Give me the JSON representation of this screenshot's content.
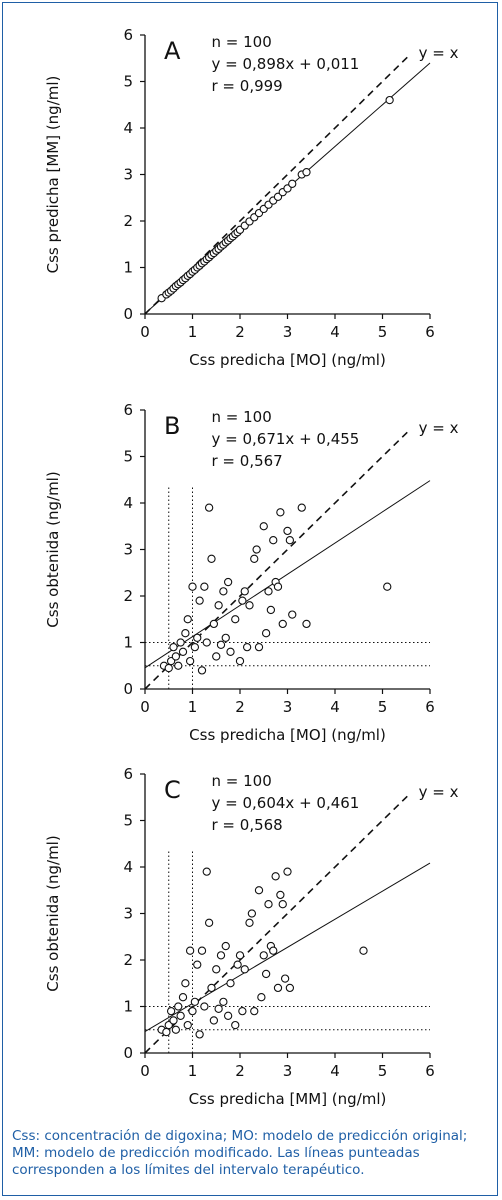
{
  "chart_data": [
    {
      "type": "scatter",
      "panel": "A",
      "xlabel": "Css predicha [MO] (ng/ml)",
      "ylabel": "Css predicha [MM] (ng/ml)",
      "xlim": [
        0,
        6
      ],
      "ylim": [
        0,
        6
      ],
      "xticks": [
        "0",
        "1",
        "2",
        "3",
        "4",
        "5",
        "6"
      ],
      "yticks": [
        "0",
        "1",
        "2",
        "3",
        "4",
        "5",
        "6"
      ],
      "stats": [
        "n = 100",
        "y = 0,898x + 0,011",
        "r = 0,999"
      ],
      "identity_label": "y = x",
      "regression": {
        "slope": 0.898,
        "intercept": 0.011
      },
      "ref_lines_x": [],
      "ref_lines_y": [],
      "points": [
        [
          0.35,
          0.34
        ],
        [
          0.45,
          0.42
        ],
        [
          0.5,
          0.46
        ],
        [
          0.55,
          0.5
        ],
        [
          0.6,
          0.55
        ],
        [
          0.65,
          0.6
        ],
        [
          0.7,
          0.64
        ],
        [
          0.75,
          0.68
        ],
        [
          0.8,
          0.73
        ],
        [
          0.85,
          0.77
        ],
        [
          0.9,
          0.82
        ],
        [
          0.95,
          0.86
        ],
        [
          1.0,
          0.91
        ],
        [
          1.05,
          0.95
        ],
        [
          1.1,
          1.0
        ],
        [
          1.15,
          1.04
        ],
        [
          1.2,
          1.09
        ],
        [
          1.25,
          1.13
        ],
        [
          1.3,
          1.18
        ],
        [
          1.35,
          1.22
        ],
        [
          1.4,
          1.27
        ],
        [
          1.45,
          1.31
        ],
        [
          1.5,
          1.36
        ],
        [
          1.55,
          1.4
        ],
        [
          1.6,
          1.45
        ],
        [
          1.65,
          1.49
        ],
        [
          1.7,
          1.54
        ],
        [
          1.75,
          1.58
        ],
        [
          1.8,
          1.63
        ],
        [
          1.85,
          1.67
        ],
        [
          1.9,
          1.72
        ],
        [
          1.95,
          1.76
        ],
        [
          2.0,
          1.81
        ],
        [
          2.1,
          1.9
        ],
        [
          2.2,
          1.99
        ],
        [
          2.3,
          2.08
        ],
        [
          2.4,
          2.17
        ],
        [
          2.5,
          2.26
        ],
        [
          2.6,
          2.35
        ],
        [
          2.7,
          2.44
        ],
        [
          2.8,
          2.52
        ],
        [
          2.9,
          2.62
        ],
        [
          3.0,
          2.7
        ],
        [
          3.1,
          2.8
        ],
        [
          3.3,
          3.0
        ],
        [
          3.4,
          3.05
        ],
        [
          5.15,
          4.6
        ]
      ]
    },
    {
      "type": "scatter",
      "panel": "B",
      "xlabel": "Css predicha [MO] (ng/ml)",
      "ylabel": "Css obtenida (ng/ml)",
      "xlim": [
        0,
        6
      ],
      "ylim": [
        0,
        6
      ],
      "xticks": [
        "0",
        "1",
        "2",
        "3",
        "4",
        "5",
        "6"
      ],
      "yticks": [
        "0",
        "1",
        "2",
        "3",
        "4",
        "5",
        "6"
      ],
      "stats": [
        "n = 100",
        "y = 0,671x + 0,455",
        "r = 0,567"
      ],
      "identity_label": "y = x",
      "regression": {
        "slope": 0.671,
        "intercept": 0.455
      },
      "ref_lines_x": [
        0.5,
        1.0
      ],
      "ref_lines_y": [
        0.5,
        1.0
      ],
      "points": [
        [
          0.4,
          0.5
        ],
        [
          0.5,
          0.45
        ],
        [
          0.55,
          0.6
        ],
        [
          0.6,
          0.9
        ],
        [
          0.65,
          0.7
        ],
        [
          0.7,
          0.5
        ],
        [
          0.75,
          1.0
        ],
        [
          0.8,
          0.8
        ],
        [
          0.85,
          1.2
        ],
        [
          0.9,
          1.5
        ],
        [
          0.95,
          0.6
        ],
        [
          1.0,
          2.2
        ],
        [
          1.05,
          0.9
        ],
        [
          1.1,
          1.1
        ],
        [
          1.15,
          1.9
        ],
        [
          1.2,
          0.4
        ],
        [
          1.25,
          2.2
        ],
        [
          1.3,
          1.0
        ],
        [
          1.35,
          3.9
        ],
        [
          1.4,
          2.8
        ],
        [
          1.45,
          1.4
        ],
        [
          1.5,
          0.7
        ],
        [
          1.55,
          1.8
        ],
        [
          1.6,
          0.95
        ],
        [
          1.65,
          2.1
        ],
        [
          1.7,
          1.1
        ],
        [
          1.75,
          2.3
        ],
        [
          1.8,
          0.8
        ],
        [
          1.9,
          1.5
        ],
        [
          2.0,
          0.6
        ],
        [
          2.05,
          1.9
        ],
        [
          2.1,
          2.1
        ],
        [
          2.15,
          0.9
        ],
        [
          2.2,
          1.8
        ],
        [
          2.3,
          2.8
        ],
        [
          2.35,
          3.0
        ],
        [
          2.4,
          0.9
        ],
        [
          2.5,
          3.5
        ],
        [
          2.55,
          1.2
        ],
        [
          2.6,
          2.1
        ],
        [
          2.65,
          1.7
        ],
        [
          2.7,
          3.2
        ],
        [
          2.75,
          2.3
        ],
        [
          2.8,
          2.2
        ],
        [
          2.85,
          3.8
        ],
        [
          2.9,
          1.4
        ],
        [
          3.0,
          3.4
        ],
        [
          3.05,
          3.2
        ],
        [
          3.1,
          1.6
        ],
        [
          3.3,
          3.9
        ],
        [
          3.4,
          1.4
        ],
        [
          5.1,
          2.2
        ]
      ]
    },
    {
      "type": "scatter",
      "panel": "C",
      "xlabel": "Css predicha [MM] (ng/ml)",
      "ylabel": "Css obtenida (ng/ml)",
      "xlim": [
        0,
        6
      ],
      "ylim": [
        0,
        6
      ],
      "xticks": [
        "0",
        "1",
        "2",
        "3",
        "4",
        "5",
        "6"
      ],
      "yticks": [
        "0",
        "1",
        "2",
        "3",
        "4",
        "5",
        "6"
      ],
      "stats": [
        "n = 100",
        "y = 0,604x + 0,461",
        "r = 0,568"
      ],
      "identity_label": "y = x",
      "regression": {
        "slope": 0.604,
        "intercept": 0.461
      },
      "ref_lines_x": [
        0.5,
        1.0
      ],
      "ref_lines_y": [
        0.5,
        1.0
      ],
      "points": [
        [
          0.35,
          0.5
        ],
        [
          0.45,
          0.45
        ],
        [
          0.5,
          0.6
        ],
        [
          0.55,
          0.9
        ],
        [
          0.6,
          0.7
        ],
        [
          0.65,
          0.5
        ],
        [
          0.7,
          1.0
        ],
        [
          0.75,
          0.8
        ],
        [
          0.8,
          1.2
        ],
        [
          0.85,
          1.5
        ],
        [
          0.9,
          0.6
        ],
        [
          0.95,
          2.2
        ],
        [
          1.0,
          0.9
        ],
        [
          1.05,
          1.1
        ],
        [
          1.1,
          1.9
        ],
        [
          1.15,
          0.4
        ],
        [
          1.2,
          2.2
        ],
        [
          1.25,
          1.0
        ],
        [
          1.3,
          3.9
        ],
        [
          1.35,
          2.8
        ],
        [
          1.4,
          1.4
        ],
        [
          1.45,
          0.7
        ],
        [
          1.5,
          1.8
        ],
        [
          1.55,
          0.95
        ],
        [
          1.6,
          2.1
        ],
        [
          1.65,
          1.1
        ],
        [
          1.7,
          2.3
        ],
        [
          1.75,
          0.8
        ],
        [
          1.8,
          1.5
        ],
        [
          1.9,
          0.6
        ],
        [
          1.95,
          1.9
        ],
        [
          2.0,
          2.1
        ],
        [
          2.05,
          0.9
        ],
        [
          2.1,
          1.8
        ],
        [
          2.2,
          2.8
        ],
        [
          2.25,
          3.0
        ],
        [
          2.3,
          0.9
        ],
        [
          2.4,
          3.5
        ],
        [
          2.45,
          1.2
        ],
        [
          2.5,
          2.1
        ],
        [
          2.55,
          1.7
        ],
        [
          2.6,
          3.2
        ],
        [
          2.65,
          2.3
        ],
        [
          2.7,
          2.2
        ],
        [
          2.75,
          3.8
        ],
        [
          2.8,
          1.4
        ],
        [
          2.85,
          3.4
        ],
        [
          2.9,
          3.2
        ],
        [
          2.95,
          1.6
        ],
        [
          3.0,
          3.9
        ],
        [
          3.05,
          1.4
        ],
        [
          4.6,
          2.2
        ]
      ]
    }
  ],
  "footnote": "Css: concentración de digoxina; MO: modelo de predicción original; MM: modelo de predicción modificado. Las líneas punteadas corresponden a los límites del intervalo terapéutico."
}
